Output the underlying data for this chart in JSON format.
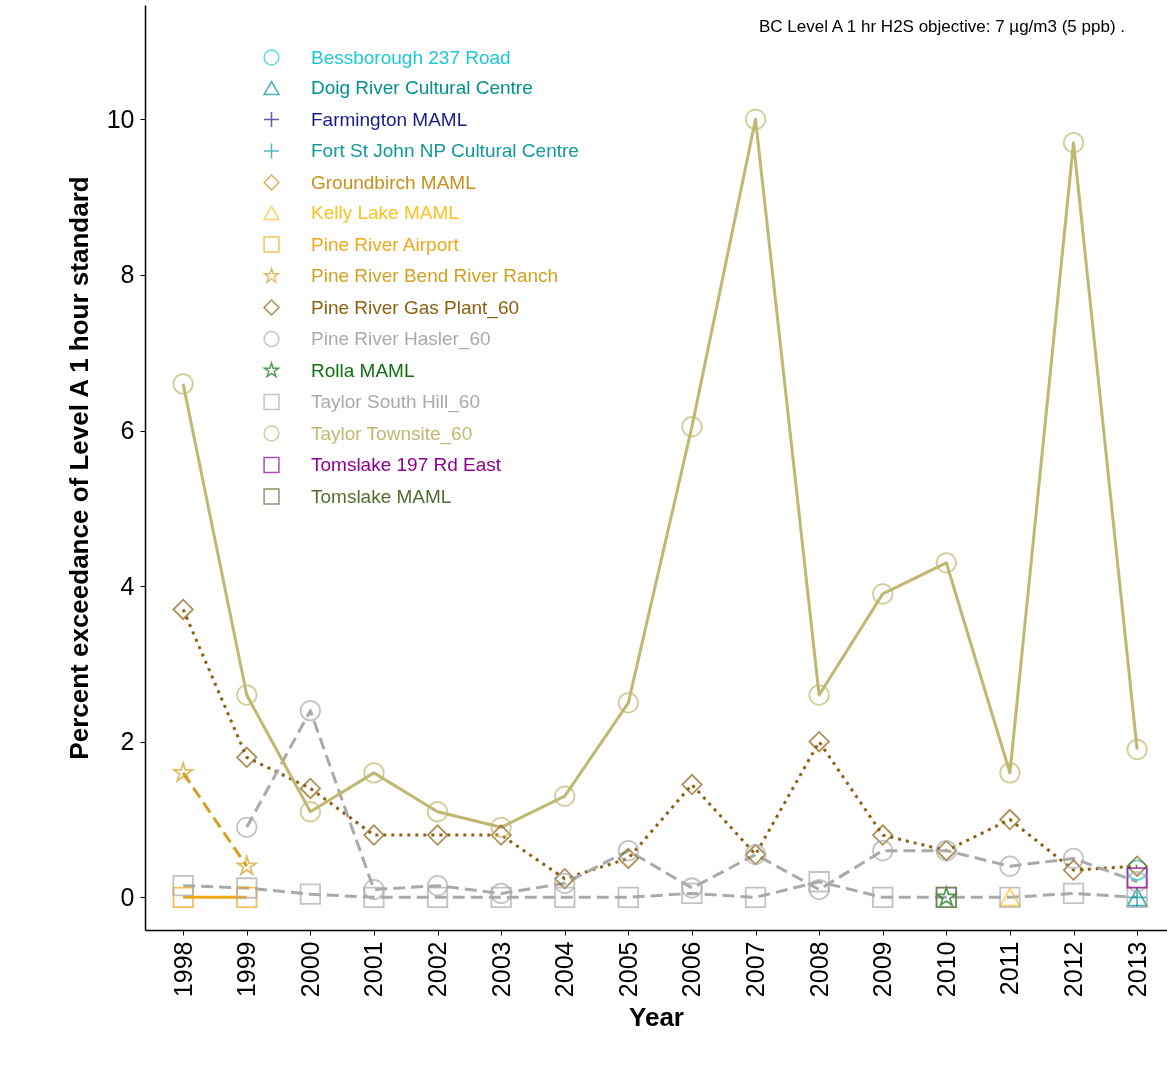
{
  "chart_data": {
    "type": "line",
    "xlabel": "Year",
    "ylabel": "Percent exceedance of Level A 1 hour standard",
    "annotations": [
      "BC Level A 1 hr H2S objective: 7 µg/m3 (5 ppb) ."
    ],
    "x": [
      1998,
      1999,
      2000,
      2001,
      2002,
      2003,
      2004,
      2005,
      2006,
      2007,
      2008,
      2009,
      2010,
      2011,
      2012,
      2013
    ],
    "xlim": [
      1997.4,
      2013.47
    ],
    "xticks": [
      1998,
      1999,
      2000,
      2001,
      2002,
      2003,
      2004,
      2005,
      2006,
      2007,
      2008,
      2009,
      2010,
      2011,
      2012,
      2013
    ],
    "ylim": [
      -0.42,
      11.47
    ],
    "yticks": [
      0,
      2,
      4,
      6,
      8,
      10
    ],
    "legend": "top left",
    "series": [
      {
        "name": "Bessborough 237 Road",
        "color": "#1ec8d2",
        "line_style": "solid",
        "marker": "circle",
        "values": [
          null,
          null,
          null,
          null,
          null,
          null,
          null,
          null,
          null,
          null,
          null,
          null,
          null,
          null,
          null,
          0.35
        ]
      },
      {
        "name": "Doig River Cultural Centre",
        "color": "#009090",
        "line_style": "dashed",
        "marker": "triangle",
        "values": [
          null,
          null,
          null,
          null,
          null,
          null,
          null,
          null,
          null,
          null,
          null,
          null,
          null,
          null,
          null,
          0
        ]
      },
      {
        "name": "Farmington MAML",
        "color": "#1a1a8c",
        "line_style": "dotted",
        "marker": "cross",
        "values": [
          null,
          null,
          null,
          null,
          null,
          null,
          null,
          null,
          null,
          null,
          null,
          null,
          null,
          null,
          null,
          null
        ]
      },
      {
        "name": "Fort St John NP Cultural Centre",
        "color": "#109a9a",
        "line_style": "dashed",
        "marker": "cross",
        "values": [
          null,
          null,
          null,
          null,
          null,
          null,
          null,
          null,
          null,
          null,
          null,
          null,
          null,
          null,
          null,
          0
        ]
      },
      {
        "name": "Groundbirch MAML",
        "color": "#c8901a",
        "line_style": "dashed",
        "marker": "diamond",
        "values": [
          null,
          null,
          null,
          null,
          null,
          null,
          null,
          null,
          null,
          null,
          null,
          null,
          null,
          null,
          null,
          null
        ]
      },
      {
        "name": "Kelly Lake MAML",
        "color": "#ffc020",
        "line_style": "dashed",
        "marker": "triangle",
        "values": [
          null,
          null,
          null,
          null,
          null,
          null,
          null,
          null,
          null,
          null,
          null,
          null,
          null,
          0,
          null,
          null
        ]
      },
      {
        "name": "Pine River Airport",
        "color": "#f0a818",
        "line_style": "solid",
        "marker": "square",
        "values": [
          0,
          0,
          null,
          null,
          null,
          null,
          null,
          null,
          null,
          null,
          null,
          null,
          null,
          null,
          null,
          null
        ]
      },
      {
        "name": "Pine River Bend River Ranch",
        "color": "#d4a020",
        "line_style": "dashed",
        "marker": "star",
        "values": [
          1.6,
          0.4,
          null,
          null,
          null,
          null,
          null,
          null,
          null,
          null,
          null,
          null,
          null,
          null,
          null,
          null
        ]
      },
      {
        "name": "Pine River Gas Plant_60",
        "color": "#8b6010",
        "line_style": "dotted",
        "marker": "diamond",
        "values": [
          3.7,
          1.8,
          1.4,
          0.8,
          0.8,
          0.8,
          0.24,
          0.5,
          1.45,
          0.55,
          2.0,
          0.8,
          0.6,
          1.0,
          0.35,
          0.4
        ]
      },
      {
        "name": "Pine River Hasler_60",
        "color": "#aaaaaa",
        "line_style": "dashed",
        "marker": "circle",
        "values": [
          null,
          0.9,
          2.4,
          0.1,
          0.15,
          0.05,
          0.18,
          0.6,
          0.12,
          0.55,
          0.1,
          0.6,
          0.6,
          0.4,
          0.5,
          0.2
        ]
      },
      {
        "name": "Rolla MAML",
        "color": "#107010",
        "line_style": "dashed",
        "marker": "star",
        "values": [
          null,
          null,
          null,
          null,
          null,
          null,
          null,
          null,
          null,
          null,
          null,
          null,
          0,
          null,
          null,
          null
        ]
      },
      {
        "name": "Taylor South Hill_60",
        "color": "#aaaaaa",
        "line_style": "dashed",
        "marker": "square",
        "values": [
          0.15,
          0.12,
          0.04,
          0,
          0,
          0,
          0,
          0,
          0.05,
          0,
          0.2,
          0,
          0,
          0,
          0.05,
          0
        ]
      },
      {
        "name": "Taylor Townsite_60",
        "color": "#c0b870",
        "line_style": "solid",
        "marker": "circle",
        "values": [
          6.6,
          2.6,
          1.1,
          1.6,
          1.1,
          0.9,
          1.3,
          2.5,
          6.05,
          10.0,
          2.6,
          3.9,
          4.3,
          1.6,
          9.7,
          1.9
        ]
      },
      {
        "name": "Tomslake 197 Rd East",
        "color": "#900090",
        "line_style": "dashed",
        "marker": "square",
        "values": [
          null,
          null,
          null,
          null,
          null,
          null,
          null,
          null,
          null,
          null,
          null,
          null,
          null,
          null,
          null,
          0.25
        ]
      },
      {
        "name": "Tomslake MAML",
        "color": "#556b2f",
        "line_style": "dotted",
        "marker": "square",
        "values": [
          null,
          null,
          null,
          null,
          null,
          null,
          null,
          null,
          null,
          null,
          null,
          null,
          0,
          null,
          null,
          null
        ]
      }
    ]
  }
}
